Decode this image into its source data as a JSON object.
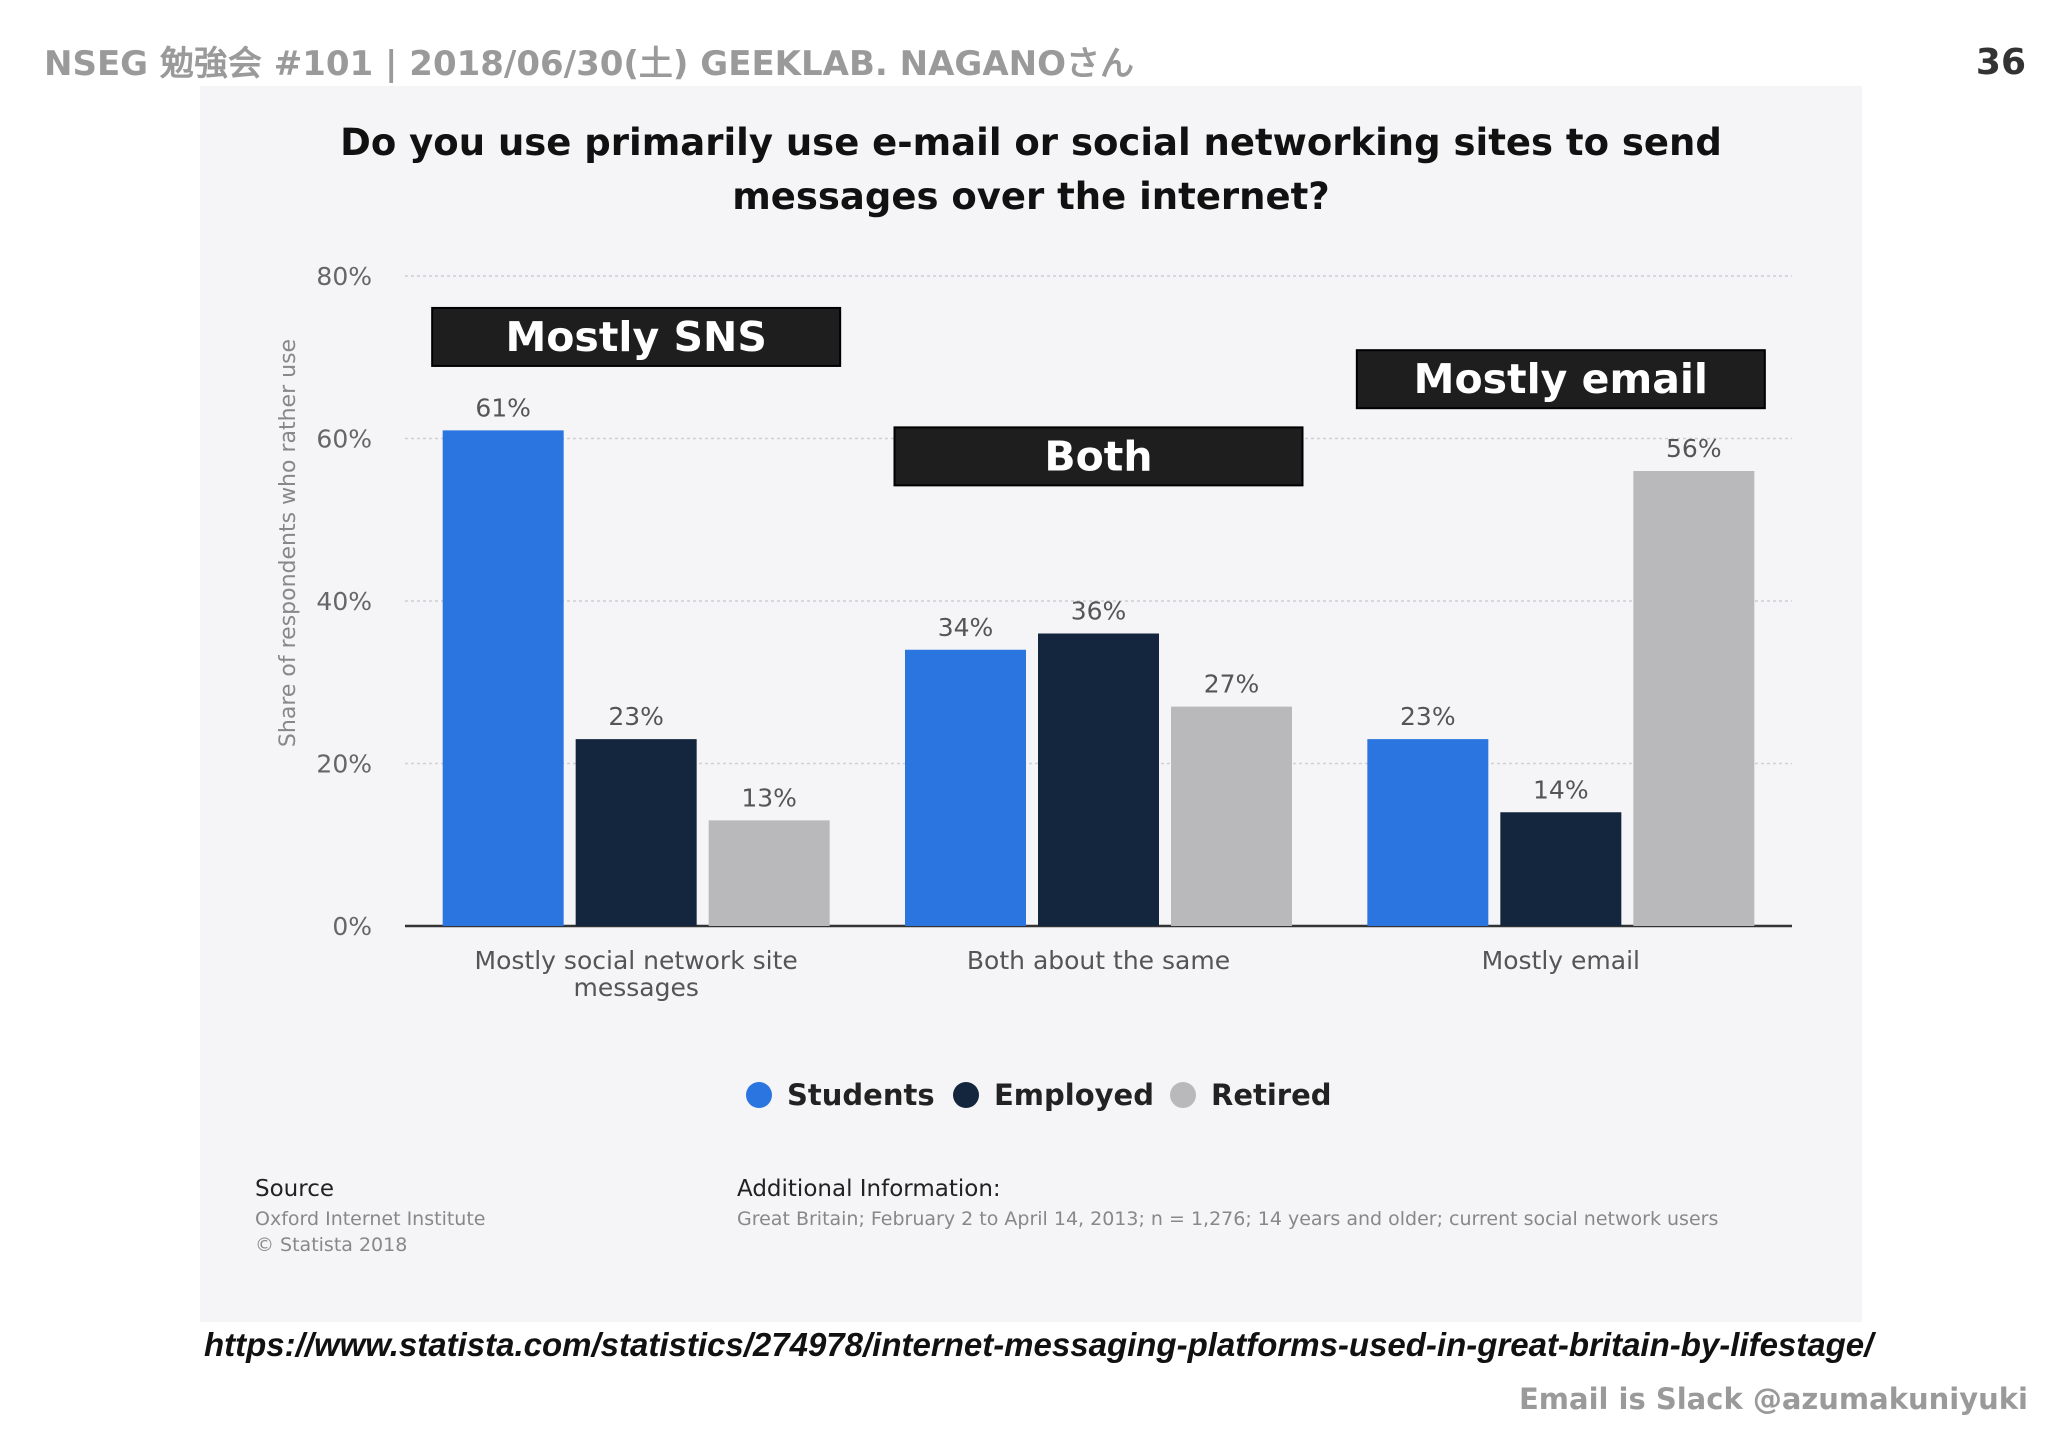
{
  "slide": {
    "header": "NSEG 勉強会 #101 | 2018/06/30(土) GEEKLAB. NAGANOさん",
    "page_number": "36",
    "url": "https://www.statista.com/statistics/274978/internet-messaging-platforms-used-in-great-britain-by-lifestage/",
    "footer": "Email is Slack @azumakuniyuki"
  },
  "chart_data": {
    "type": "bar",
    "title": "Do you use primarily use e-mail or social networking sites to send messages over the internet?",
    "title_lines": [
      "Do you use primarily use e-mail or social networking sites to send",
      "messages over the internet?"
    ],
    "ylabel": "Share of respondents who rather use",
    "xlabel": "",
    "ylim": [
      0,
      80
    ],
    "yticks": [
      "0%",
      "20%",
      "40%",
      "60%",
      "80%"
    ],
    "ytick_values": [
      0,
      20,
      40,
      60,
      80
    ],
    "grid": true,
    "legend_position": "bottom",
    "categories": [
      [
        "Mostly social network site",
        "messages"
      ],
      [
        "Both about the same"
      ],
      [
        "Mostly email"
      ]
    ],
    "series": [
      {
        "name": "Students",
        "color": "#2a75e0",
        "values": [
          61,
          34,
          23
        ],
        "labels": [
          "61%",
          "34%",
          "23%"
        ]
      },
      {
        "name": "Employed",
        "color": "#14263d",
        "values": [
          23,
          36,
          14
        ],
        "labels": [
          "23%",
          "36%",
          "14%"
        ]
      },
      {
        "name": "Retired",
        "color": "#b9b9bb",
        "values": [
          13,
          27,
          56
        ],
        "labels": [
          "13%",
          "27%",
          "56%"
        ]
      }
    ],
    "annotations": [
      {
        "text": "Mostly SNS",
        "group": 0,
        "at_value": 72.5
      },
      {
        "text": "Both",
        "group": 1,
        "at_value": 57.8
      },
      {
        "text": "Mostly email",
        "group": 2,
        "at_value": 67.3
      }
    ]
  },
  "source": {
    "heading": "Source",
    "lines": [
      "Oxford Internet Institute",
      "© Statista 2018"
    ]
  },
  "additional_info": {
    "heading": "Additional Information:",
    "text": "Great Britain; February 2 to April 14, 2013; n = 1,276; 14 years and older; current social network users"
  }
}
